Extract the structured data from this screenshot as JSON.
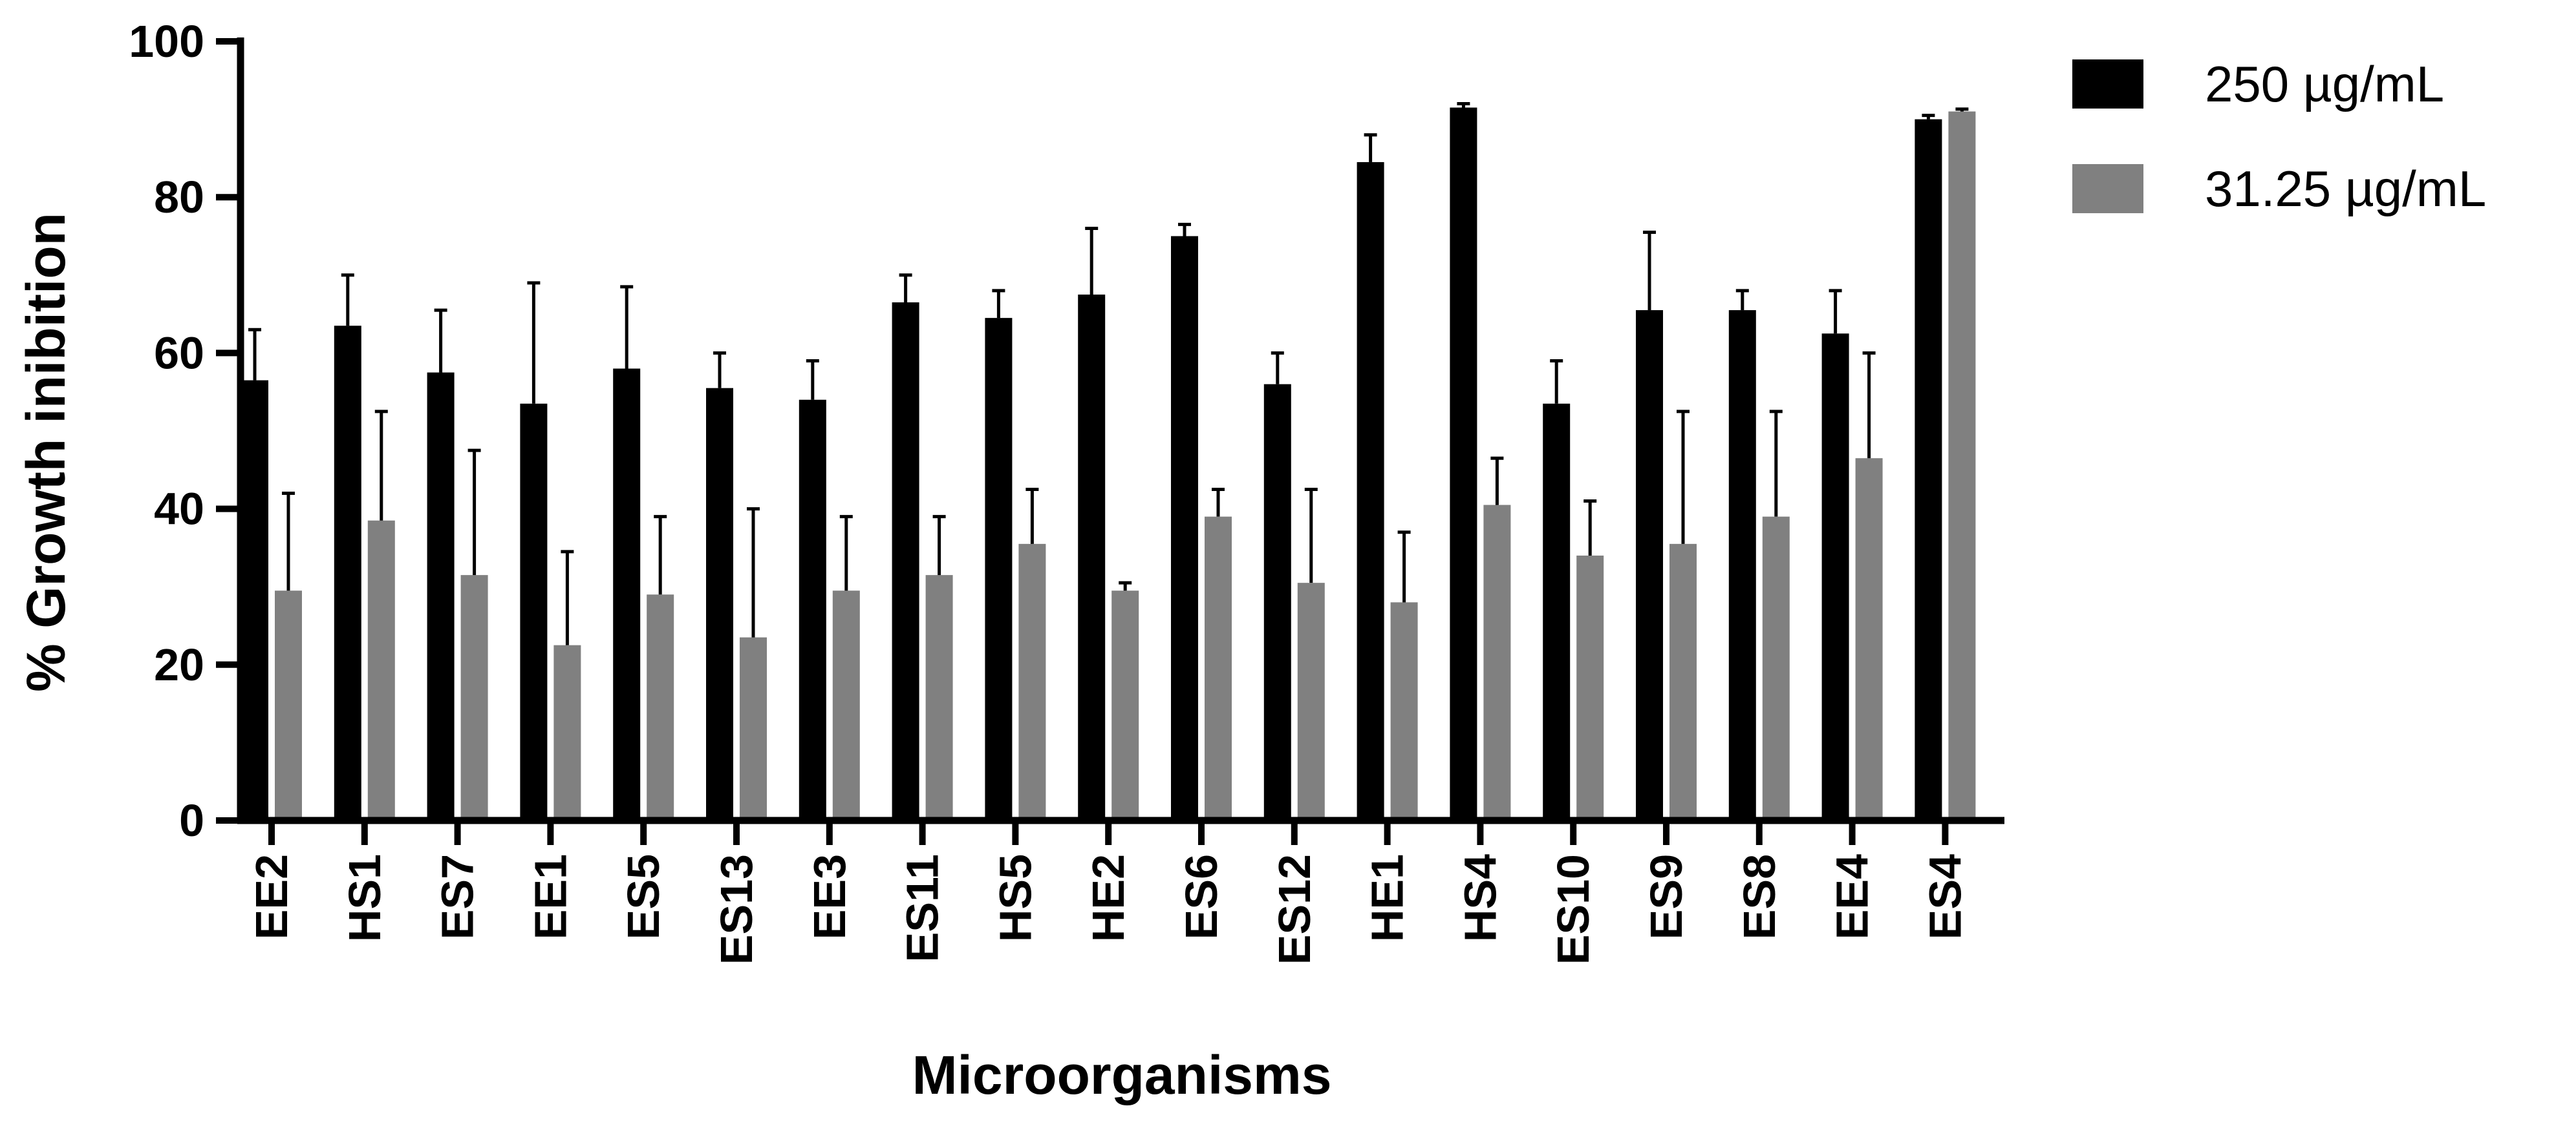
{
  "chart_data": {
    "type": "bar",
    "xlabel": "Microorganisms",
    "ylabel": "% Growth inibition",
    "ylim": [
      0,
      100
    ],
    "yticks": [
      "0",
      "20",
      "40",
      "60",
      "80",
      "100"
    ],
    "grid": false,
    "legend_position": "top-right",
    "categories": [
      "EE2",
      "HS1",
      "ES7",
      "EE1",
      "ES5",
      "ES13",
      "EE3",
      "ES11",
      "HS5",
      "HE2",
      "ES6",
      "ES12",
      "HE1",
      "HS4",
      "ES10",
      "ES9",
      "ES8",
      "EE4",
      "ES4"
    ],
    "series": [
      {
        "name": "250 µg/mL",
        "color": "#000000",
        "values": [
          56.5,
          63.5,
          57.5,
          53.5,
          58,
          55.5,
          54,
          66.5,
          64.5,
          67.5,
          75,
          56,
          84.5,
          91.5,
          53.5,
          65.5,
          65.5,
          62.5,
          90
        ],
        "errors": [
          6.5,
          6.5,
          8,
          15.5,
          10.5,
          4.5,
          5,
          3.5,
          3.5,
          8.5,
          1.5,
          4,
          3.5,
          0.5,
          5.5,
          10,
          2.5,
          5.5,
          0.5
        ]
      },
      {
        "name": "31.25 µg/mL",
        "color": "#808080",
        "values": [
          29.5,
          38.5,
          31.5,
          22.5,
          29,
          23.5,
          29.5,
          31.5,
          35.5,
          29.5,
          39,
          30.5,
          28,
          40.5,
          34,
          35.5,
          39,
          46.5,
          91
        ],
        "errors": [
          12.5,
          14,
          16,
          12,
          10,
          16.5,
          9.5,
          7.5,
          7,
          1,
          3.5,
          12,
          9,
          6,
          7,
          17,
          13.5,
          13.5,
          0.3
        ]
      }
    ]
  }
}
